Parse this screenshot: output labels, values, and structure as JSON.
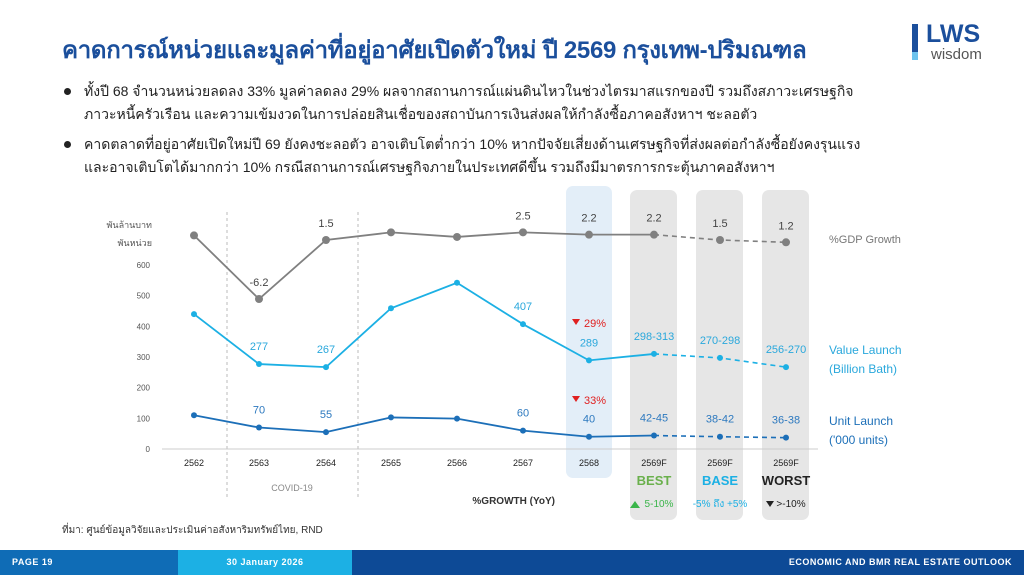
{
  "title": "คาดการณ์หน่วยและมูลค่าที่อยู่อาศัยเปิดตัวใหม่ ปี 2569 กรุงเทพ-ปริมณฑล",
  "logo": {
    "main": "LWS",
    "sub": "wisdom"
  },
  "bullets": [
    "ทั้งปี 68 จำนวนหน่วยลดลง 33% มูลค่าลดลง 29% ผลจากสถานการณ์แผ่นดินไหวในช่วงไตรมาสแรกของปี รวมถึงสภาวะเศรษฐกิจ ภาวะหนี้ครัวเรือน และความเข้มงวดในการปล่อยสินเชื่อของสถาบันการเงินส่งผลให้กำลังซื้อภาคอสังหาฯ ชะลอตัว",
    "คาดตลาดที่อยู่อาศัยเปิดใหม่ปี 69 ยังคงชะลอตัว อาจเติบโตต่ำกว่า 10% หากปัจจัยเสี่ยงด้านเศรษฐกิจที่ส่งผลต่อกำลังซื้อยังคงรุนแรง และอาจเติบโตได้มากกว่า 10% กรณีสถานการณ์เศรษฐกิจภายในประเทศดีขึ้น รวมถึงมีมาตรการกระตุ้นภาคอสังหาฯ"
  ],
  "chart_data": {
    "type": "line",
    "categories": [
      "2562",
      "2563",
      "2564",
      "2565",
      "2566",
      "2567",
      "2568",
      "2569F",
      "2569F",
      "2569F"
    ],
    "scenarios": [
      {
        "label": "BEST",
        "color": "#6ab04c",
        "growth": "5-10%",
        "growth_icon": "triangle-up",
        "growth_color": "#3ab54a"
      },
      {
        "label": "BASE",
        "color": "#1cb0e4",
        "growth": "-5% ถึง +5%",
        "growth_color": "#1cb0e4"
      },
      {
        "label": "WORST",
        "color": "#222222",
        "growth": ">-10%",
        "growth_icon": "triangle-down",
        "growth_color": "#222222"
      }
    ],
    "y_units": [
      "พันล้านบาท",
      "พันหน่วย"
    ],
    "yticks": [
      "0",
      "100",
      "200",
      "300",
      "400",
      "500",
      "600"
    ],
    "ylim": [
      0,
      600
    ],
    "period_note": "COVID-19",
    "growth_header": "%GROWTH (YoY)",
    "series": [
      {
        "name": "%GDP Growth",
        "color": "#808080",
        "values": [
          2.1,
          -6.2,
          1.5,
          2.5,
          1.9,
          2.5,
          2.2,
          2.2,
          1.5,
          1.2
        ],
        "labels": [
          "",
          "-6.2",
          "1.5",
          "",
          "",
          "2.5",
          "2.2",
          "2.2",
          "1.5",
          "1.2"
        ]
      },
      {
        "name": "Value Launch",
        "name2": "(Billion Bath)",
        "color": "#1cb0e4",
        "values": [
          440,
          277,
          267,
          459,
          542,
          407,
          289,
          310,
          297,
          267
        ],
        "labels": [
          "",
          "277",
          "267",
          "",
          "",
          "407",
          "289",
          "298-313",
          "270-298",
          "256-270"
        ],
        "change_2568": "29%"
      },
      {
        "name": "Unit Launch",
        "name2": "('000 units)",
        "color": "#1c6fb8",
        "values": [
          110,
          70,
          55,
          103,
          99,
          60,
          40,
          44,
          40,
          37
        ],
        "labels": [
          "",
          "70",
          "55",
          "",
          "",
          "60",
          "40",
          "42-45",
          "38-42",
          "36-38"
        ],
        "change_2568": "33%"
      }
    ],
    "decline_color": "#e02020",
    "highlight_colors": {
      "actual_2568": "#e3eef8",
      "forecast": "#e6e6e6"
    }
  },
  "source": "ที่มา: ศูนย์ข้อมูลวิจัยและประเมินค่าอสังหาริมทรัพย์ไทย, RND",
  "footer": {
    "page": "PAGE 19",
    "date": "30 January 2026",
    "report": "ECONOMIC AND BMR REAL ESTATE OUTLOOK"
  }
}
